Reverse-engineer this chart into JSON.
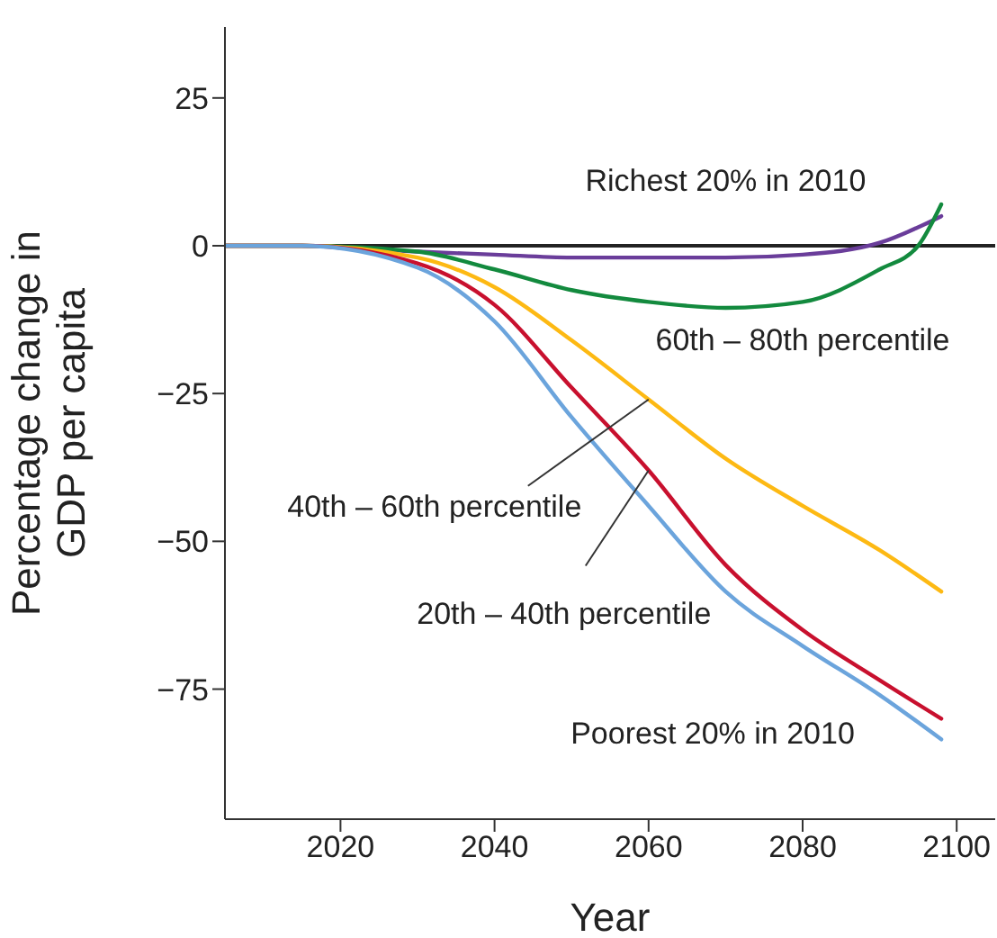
{
  "chart_data": {
    "type": "line",
    "xlabel": "Year",
    "ylabel": "Percentage change in GDP per capita",
    "xlim": [
      2005,
      2105
    ],
    "xticks": [
      2020,
      2040,
      2060,
      2080,
      2100
    ],
    "ylim": [
      -97,
      37
    ],
    "yticks": [
      -75,
      -50,
      -25,
      0,
      25
    ],
    "grid": false,
    "marker": "none",
    "line_style": "solid",
    "ref_lines": [
      {
        "axis": "y",
        "value": 0,
        "color": "#222222"
      }
    ],
    "series": [
      {
        "name": "Richest 20% in 2010",
        "color": "#6a3d9a",
        "x": [
          2005,
          2015,
          2030,
          2040,
          2050,
          2060,
          2070,
          2080,
          2090,
          2098
        ],
        "values": [
          0,
          0,
          -1,
          -1.5,
          -2,
          -2,
          -2,
          -1.5,
          0.5,
          5
        ]
      },
      {
        "name": "60th – 80th percentile",
        "color": "#138a3e",
        "x": [
          2005,
          2015,
          2030,
          2040,
          2050,
          2060,
          2070,
          2080,
          2090,
          2095,
          2098
        ],
        "values": [
          0,
          0,
          -1,
          -4,
          -7.5,
          -9.5,
          -10.5,
          -9.5,
          -4,
          0,
          7
        ]
      },
      {
        "color": "#fdb913",
        "x": [
          2005,
          2015,
          2030,
          2040,
          2050,
          2060,
          2070,
          2080,
          2090,
          2098
        ],
        "values": [
          0,
          0,
          -2,
          -7,
          -16,
          -26,
          -36,
          -44,
          -51.5,
          -58.5
        ]
      },
      {
        "color": "#c8102e",
        "x": [
          2005,
          2015,
          2030,
          2040,
          2050,
          2060,
          2070,
          2080,
          2090,
          2098
        ],
        "values": [
          0,
          0,
          -3,
          -10,
          -24,
          -38,
          -54,
          -65,
          -73.5,
          -80
        ]
      },
      {
        "name": "Poorest 20% in 2010",
        "color": "#6ba4dc",
        "x": [
          2005,
          2015,
          2030,
          2040,
          2050,
          2060,
          2070,
          2080,
          2090,
          2098
        ],
        "values": [
          0,
          0,
          -3.7,
          -12.8,
          -29,
          -44,
          -58.5,
          -67.7,
          -76,
          -83.5
        ]
      }
    ],
    "annotations": [
      {
        "text": "40th – 60th percentile",
        "x": 2060,
        "y": -26
      },
      {
        "text": "20th – 40th percentile",
        "x": 2060,
        "y": -38
      }
    ]
  }
}
